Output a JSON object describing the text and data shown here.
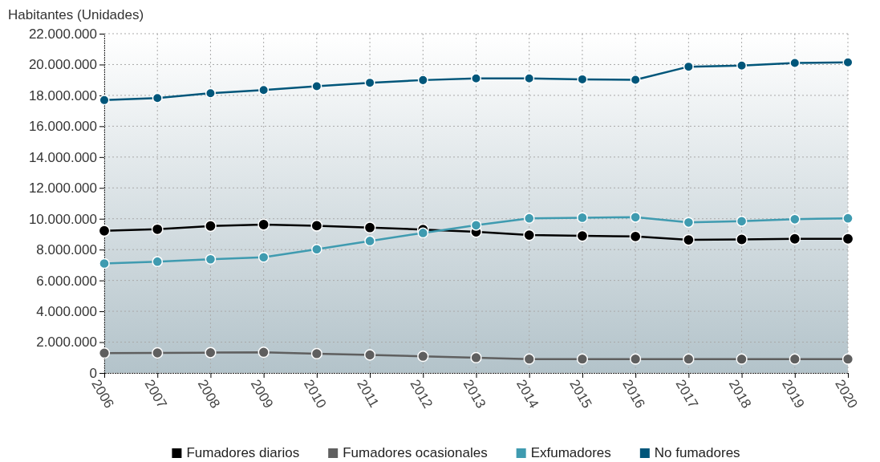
{
  "chart_data": {
    "type": "line",
    "ylabel": "Habitantes (Unidades)",
    "categories": [
      "2006",
      "2007",
      "2008",
      "2009",
      "2010",
      "2011",
      "2012",
      "2013",
      "2014",
      "2015",
      "2016",
      "2017",
      "2018",
      "2019",
      "2020"
    ],
    "series": [
      {
        "name": "Fumadores diarios",
        "color": "#000000",
        "values": [
          9220000,
          9320000,
          9530000,
          9620000,
          9550000,
          9430000,
          9300000,
          9150000,
          8940000,
          8890000,
          8850000,
          8630000,
          8660000,
          8700000,
          8700000
        ]
      },
      {
        "name": "Fumadores ocasionales",
        "color": "#5f5f5f",
        "values": [
          1290000,
          1300000,
          1320000,
          1340000,
          1250000,
          1170000,
          1080000,
          990000,
          900000,
          900000,
          900000,
          900000,
          900000,
          900000,
          900000
        ]
      },
      {
        "name": "Exfumadores",
        "color": "#3f9bb0",
        "values": [
          7100000,
          7220000,
          7370000,
          7500000,
          8020000,
          8560000,
          9080000,
          9580000,
          10030000,
          10070000,
          10100000,
          9760000,
          9840000,
          9970000,
          10030000
        ]
      },
      {
        "name": "No fumadores",
        "color": "#00567a",
        "values": [
          17690000,
          17830000,
          18140000,
          18350000,
          18590000,
          18820000,
          18990000,
          19100000,
          19100000,
          19040000,
          19010000,
          19860000,
          19930000,
          20100000,
          20140000
        ]
      }
    ],
    "ylim": [
      0,
      22000000
    ],
    "yticks": [
      0,
      {
        "value": 2000000,
        "label": "2.000.000"
      },
      {
        "value": 4000000,
        "label": "4.000.000"
      },
      {
        "value": 6000000,
        "label": "6.000.000"
      },
      {
        "value": 8000000,
        "label": "8.000.000"
      },
      {
        "value": 10000000,
        "label": "10.000.000"
      },
      {
        "value": 12000000,
        "label": "12.000.000"
      },
      {
        "value": 14000000,
        "label": "14.000.000"
      },
      {
        "value": 16000000,
        "label": "16.000.000"
      },
      {
        "value": 18000000,
        "label": "18.000.000"
      },
      {
        "value": 20000000,
        "label": "20.000.000"
      },
      {
        "value": 22000000,
        "label": "22.000.000"
      }
    ],
    "grid": true,
    "legend": "bottom",
    "marker": "circle",
    "line_style": "solid"
  }
}
